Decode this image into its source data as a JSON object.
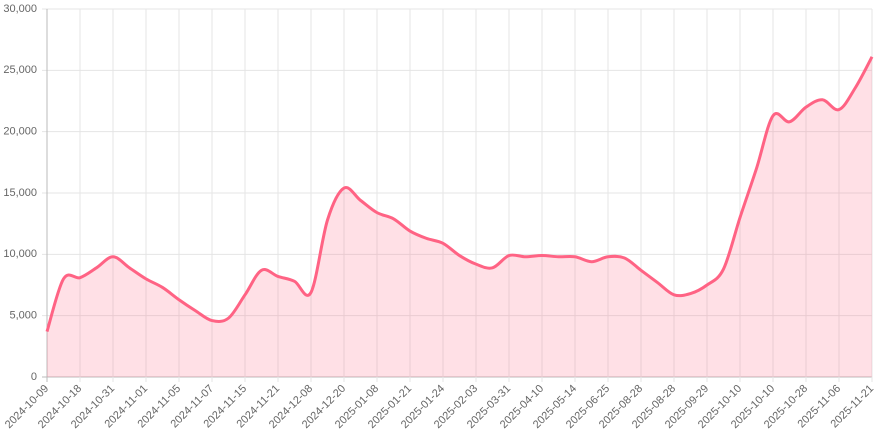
{
  "chart_data": {
    "type": "line",
    "categories": [
      "2024-10-09",
      null,
      "2024-10-18",
      null,
      "2024-10-31",
      null,
      "2024-11-01",
      null,
      "2024-11-05",
      null,
      "2024-11-07",
      null,
      "2024-11-15",
      null,
      "2024-11-21",
      null,
      "2024-12-08",
      null,
      "2024-12-20",
      null,
      "2025-01-08",
      null,
      "2025-01-21",
      null,
      "2025-01-24",
      null,
      "2025-02-03",
      null,
      "2025-03-31",
      null,
      "2025-04-10",
      null,
      "2025-05-14",
      null,
      "2025-06-25",
      null,
      "2025-08-28",
      null,
      "2025-08-28",
      null,
      "2025-09-29",
      null,
      "2025-10-10",
      null,
      "2025-10-10",
      null,
      "2025-10-28",
      null,
      "2025-11-06",
      null,
      "2025-11-21"
    ],
    "values": [
      3700,
      8000,
      8100,
      8900,
      9800,
      8900,
      8000,
      7300,
      6300,
      5400,
      4600,
      4800,
      6700,
      8700,
      8200,
      7800,
      6900,
      12800,
      15400,
      14400,
      13400,
      12900,
      11900,
      11300,
      10900,
      9900,
      9200,
      8900,
      9900,
      9800,
      9900,
      9800,
      9800,
      9400,
      9800,
      9700,
      8700,
      7700,
      6700,
      6800,
      7500,
      8800,
      13000,
      17000,
      21300,
      20800,
      22000,
      22600,
      21800,
      23600,
      26100
    ],
    "color": "#ff6384",
    "fill": "rgba(255,99,132,0.2)",
    "ylim": [
      0,
      30000
    ],
    "yticks": [
      0,
      {
        "value": 5000,
        "label": "5,000"
      },
      {
        "value": 10000,
        "label": "10,000"
      },
      {
        "value": 15000,
        "label": "15,000"
      },
      {
        "value": 20000,
        "label": "20,000"
      },
      {
        "value": 25000,
        "label": "25,000"
      },
      {
        "value": 30000,
        "label": "30,000"
      }
    ],
    "grid": true
  }
}
